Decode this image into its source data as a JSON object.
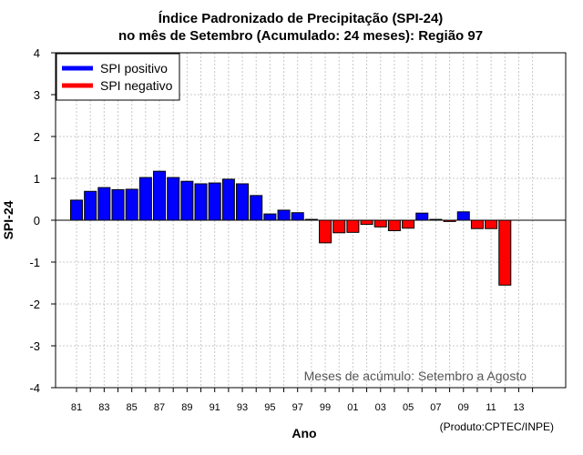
{
  "chart_data": {
    "type": "bar",
    "title": "Índice Padronizado de Precipitação (SPI-24)",
    "subtitle": "no mês de Setembro (Acumulado: 24 meses): Região 97",
    "xlabel": "Ano",
    "ylabel": "SPI-24",
    "ylim": [
      -4,
      4
    ],
    "yticks": [
      "-4",
      "-3",
      "-2",
      "-1",
      "0",
      "1",
      "2",
      "3",
      "4"
    ],
    "xtick_labels": [
      "81",
      "83",
      "85",
      "87",
      "89",
      "91",
      "93",
      "95",
      "97",
      "99",
      "01",
      "03",
      "05",
      "07",
      "09",
      "11",
      "13"
    ],
    "grid": true,
    "annotation": "Meses de acúmulo: Setembro a Agosto",
    "credit": "(Produto:CPTEC/INPE)",
    "legend": {
      "placement": "top-left",
      "entries": [
        {
          "label": "SPI positivo",
          "color": "#0000ff"
        },
        {
          "label": "SPI negativo",
          "color": "#ff0000"
        }
      ]
    },
    "colors": {
      "positive": "#0000ff",
      "negative": "#ff0000"
    },
    "categories": [
      "1981",
      "1982",
      "1983",
      "1984",
      "1985",
      "1986",
      "1987",
      "1988",
      "1989",
      "1990",
      "1991",
      "1992",
      "1993",
      "1994",
      "1995",
      "1996",
      "1997",
      "1998",
      "1999",
      "2000",
      "2001",
      "2002",
      "2003",
      "2004",
      "2005",
      "2006",
      "2007",
      "2008",
      "2009",
      "2010",
      "2011",
      "2012"
    ],
    "values": [
      0.48,
      0.69,
      0.78,
      0.73,
      0.74,
      1.02,
      1.17,
      1.02,
      0.93,
      0.87,
      0.89,
      0.98,
      0.87,
      0.59,
      0.15,
      0.24,
      0.18,
      0.02,
      -0.54,
      -0.3,
      -0.29,
      -0.1,
      -0.16,
      -0.25,
      -0.19,
      0.17,
      0.02,
      -0.03,
      0.2,
      -0.2,
      -0.2,
      -1.55
    ]
  }
}
